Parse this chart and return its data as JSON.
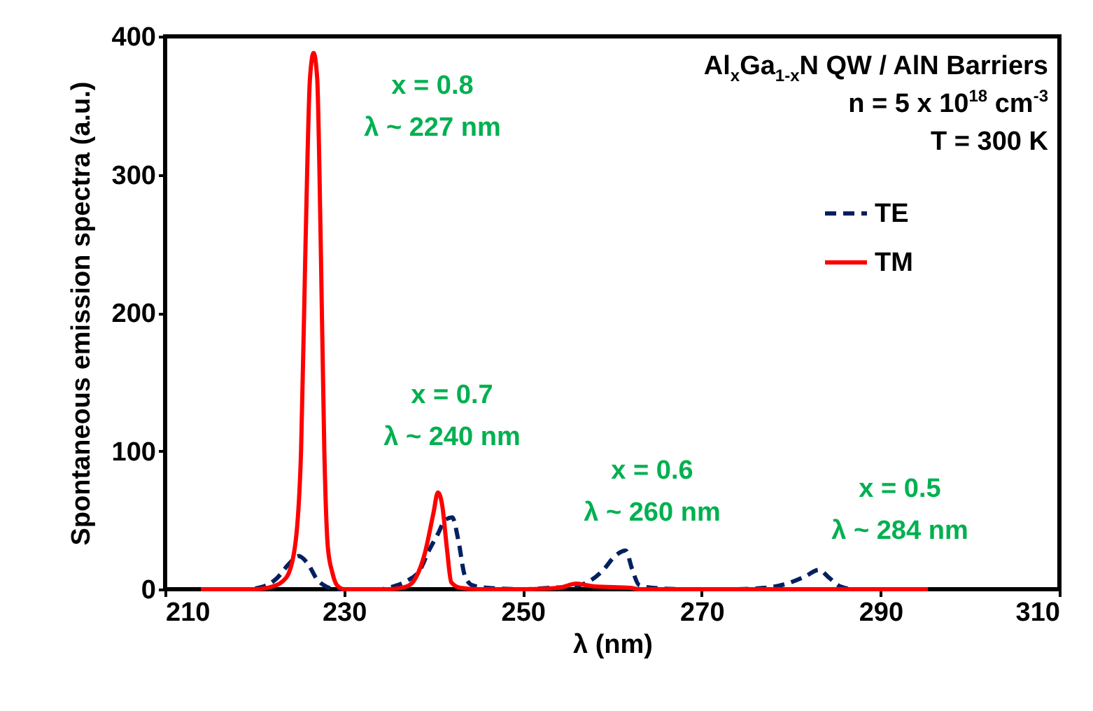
{
  "chart_data": {
    "type": "line",
    "xlabel": "λ (nm)",
    "ylabel": "Spontaneous emission spectra (a.u.)",
    "xlim": [
      210,
      310
    ],
    "xticks": [
      210,
      230,
      250,
      270,
      290,
      310
    ],
    "ylim": [
      0,
      400
    ],
    "yticks": [
      0,
      100,
      200,
      300,
      400
    ],
    "grid": false,
    "legend": "top right",
    "marker": "none",
    "series": [
      {
        "name": "TE",
        "color": "#002060",
        "line_style": "dashed",
        "x": [
          216,
          219,
          221,
          222.5,
          223.8,
          224.9,
          226,
          227,
          228,
          229,
          232,
          234,
          235.5,
          237,
          238.5,
          239.5,
          240.5,
          241.3,
          242.1,
          242.8,
          243.5,
          244.3,
          246,
          250,
          253,
          255.5,
          257.5,
          259,
          260.3,
          261.5,
          262.2,
          263,
          264.5,
          268,
          273,
          277,
          279.5,
          281.5,
          283.1,
          284.3,
          285.5,
          287,
          290
        ],
        "values": [
          0,
          0,
          2,
          8,
          18,
          24,
          18,
          7,
          2,
          0,
          0,
          0,
          2,
          6,
          14,
          28,
          40,
          50,
          52,
          35,
          10,
          3,
          1,
          0,
          1,
          2,
          6,
          14,
          24,
          28,
          15,
          3,
          1,
          0,
          0,
          1,
          4,
          9,
          14,
          8,
          2,
          0,
          0
        ]
      },
      {
        "name": "TM",
        "color": "#ff0000",
        "line_style": "solid",
        "x": [
          214,
          220,
          222,
          223.5,
          224.5,
          225.2,
          225.7,
          226.2,
          226.6,
          227,
          227.4,
          227.8,
          228.2,
          228.7,
          229.2,
          230,
          235,
          237,
          238,
          239,
          240,
          240.5,
          241,
          241.5,
          242,
          243,
          245,
          250,
          254,
          256,
          257,
          258,
          262,
          263,
          270,
          280,
          290,
          295.3
        ],
        "values": [
          0,
          0,
          2,
          8,
          30,
          100,
          250,
          370,
          388,
          370,
          250,
          100,
          30,
          12,
          3,
          0,
          0,
          2,
          8,
          25,
          55,
          70,
          60,
          30,
          5,
          1,
          0,
          0,
          1,
          4,
          3,
          2,
          1,
          0,
          0,
          0,
          0,
          0
        ]
      }
    ],
    "annotations": [
      "Al$_{x}$Ga$_{1-x}$N QW / AlN Barriers",
      "n = 5 x 10$^{18}$ cm$^{-3}$",
      "T = 300 K",
      "x = 0.8\nλ ~ 227 nm",
      "x = 0.7\nλ ~ 240 nm",
      "x = 0.6\nλ ~ 260 nm",
      "x = 0.5\nλ ~ 284 nm"
    ]
  }
}
